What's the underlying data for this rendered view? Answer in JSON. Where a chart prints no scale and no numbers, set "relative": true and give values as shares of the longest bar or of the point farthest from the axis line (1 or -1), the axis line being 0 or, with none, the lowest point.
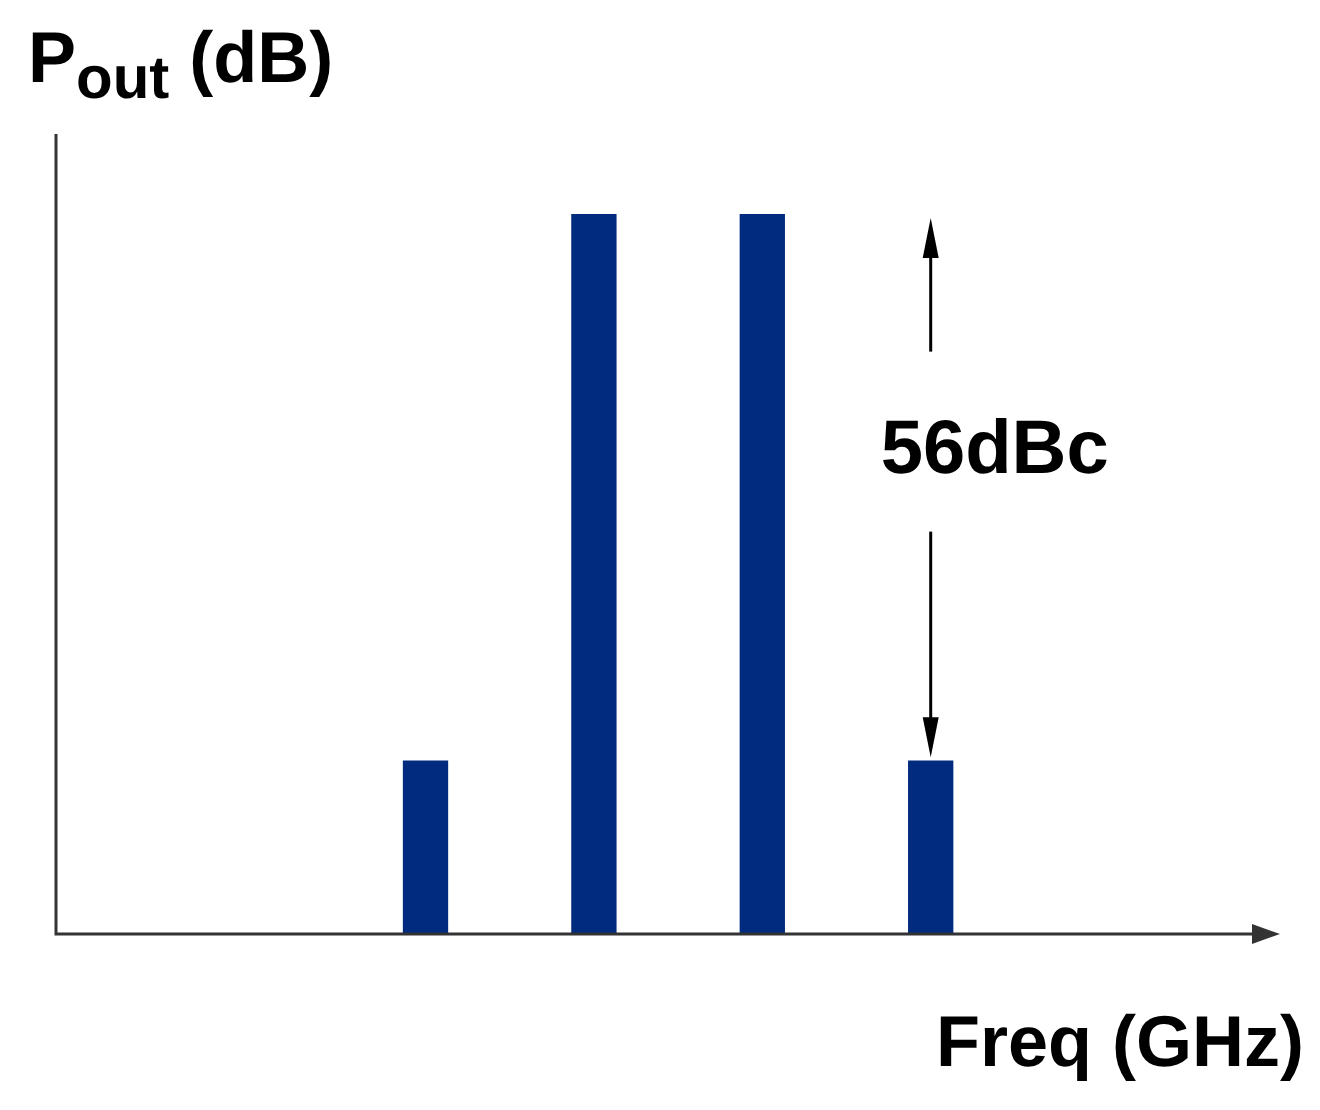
{
  "chart_data": {
    "type": "bar",
    "relative": true,
    "xlabel": "Freq (GHz)",
    "ylabel": "P$_{out}$ (dB)",
    "categories": [
      null,
      null,
      null,
      null
    ],
    "values": [
      0.24,
      1,
      1,
      0.24
    ],
    "color": "#002b7f",
    "annotations": [
      "56dBc"
    ]
  }
}
